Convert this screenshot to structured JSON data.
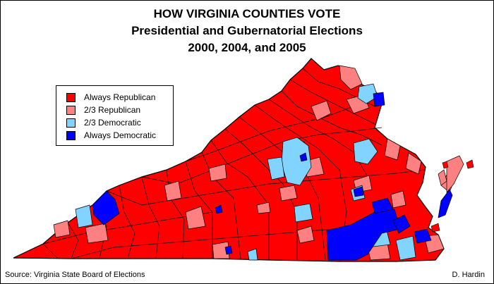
{
  "title": {
    "line1": "HOW VIRGINIA COUNTIES VOTE",
    "line2": "Presidential and Gubernatorial Elections",
    "line3": "2000, 2004, and 2005"
  },
  "legend": [
    {
      "label": "Always Republican",
      "color": "#ff0000"
    },
    {
      "label": "2/3 Republican",
      "color": "#ff8080"
    },
    {
      "label": "2/3 Democratic",
      "color": "#80d4ff"
    },
    {
      "label": "Always Democratic",
      "color": "#0000ff"
    }
  ],
  "footer": {
    "source": "Source: Virginia State Board of Elections",
    "author": "D. Hardin"
  },
  "colors": {
    "always_republican": "#ff0000",
    "two_thirds_republican": "#ff8080",
    "two_thirds_democratic": "#80d4ff",
    "always_democratic": "#0000ff",
    "border": "#000000"
  }
}
